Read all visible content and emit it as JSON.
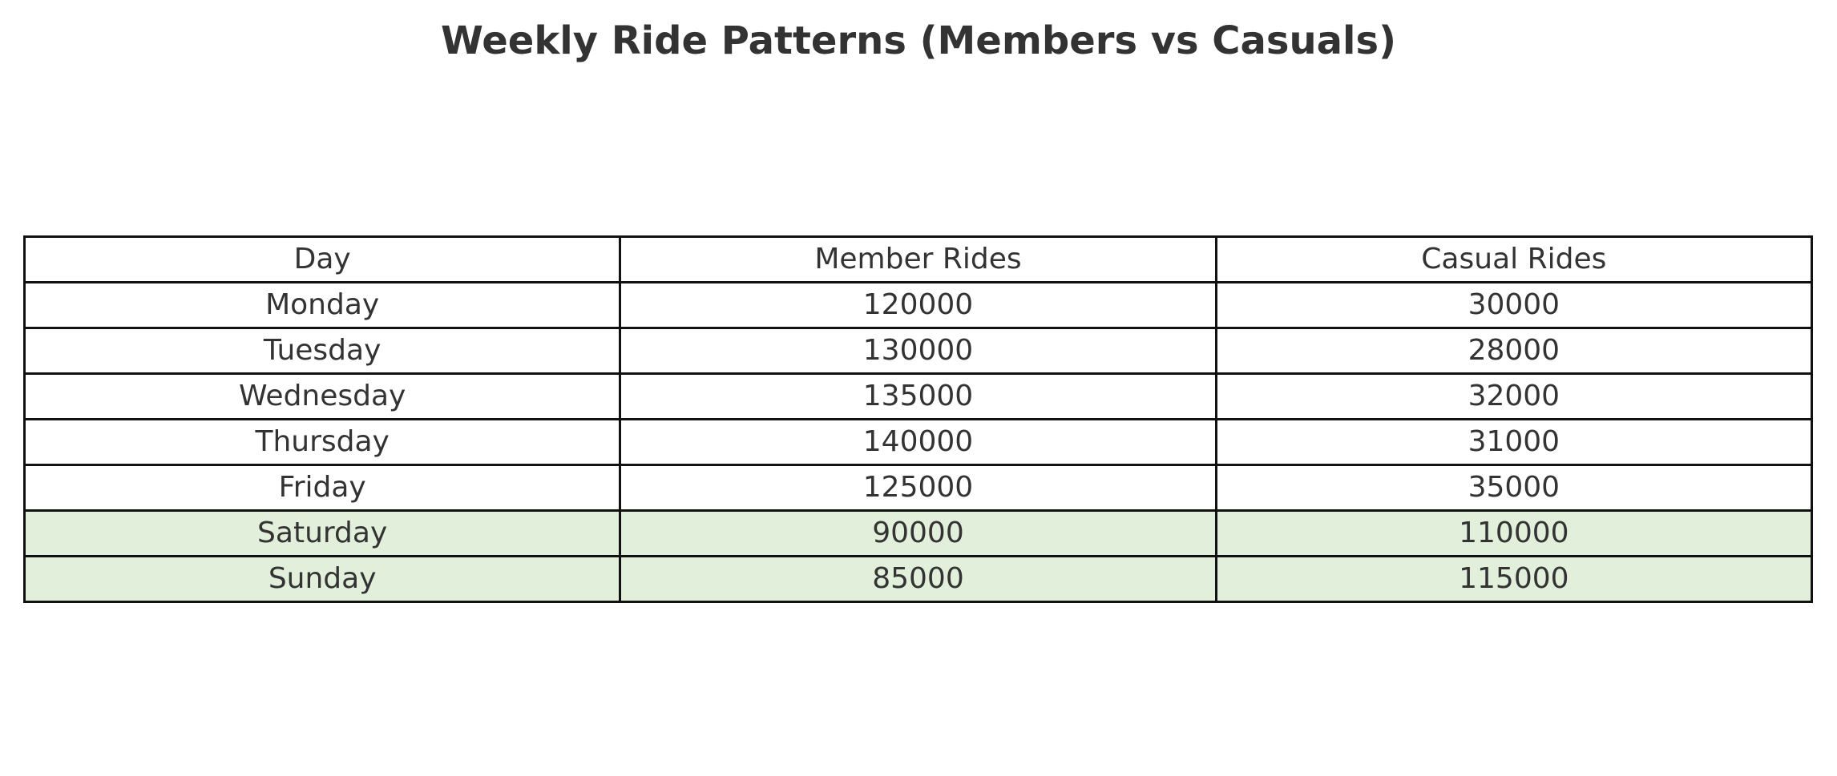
{
  "chart_data": {
    "type": "table",
    "title": "Weekly Ride Patterns (Members vs Casuals)",
    "columns": [
      "Day",
      "Member Rides",
      "Casual Rides"
    ],
    "rows": [
      {
        "day": "Monday",
        "member": "120000",
        "casual": "30000",
        "highlight": false
      },
      {
        "day": "Tuesday",
        "member": "130000",
        "casual": "28000",
        "highlight": false
      },
      {
        "day": "Wednesday",
        "member": "135000",
        "casual": "32000",
        "highlight": false
      },
      {
        "day": "Thursday",
        "member": "140000",
        "casual": "31000",
        "highlight": false
      },
      {
        "day": "Friday",
        "member": "125000",
        "casual": "35000",
        "highlight": false
      },
      {
        "day": "Saturday",
        "member": "90000",
        "casual": "110000",
        "highlight": true
      },
      {
        "day": "Sunday",
        "member": "85000",
        "casual": "115000",
        "highlight": true
      }
    ],
    "highlight_color": "#e2efdb",
    "border_color": "#111111",
    "text_color": "#333333"
  }
}
